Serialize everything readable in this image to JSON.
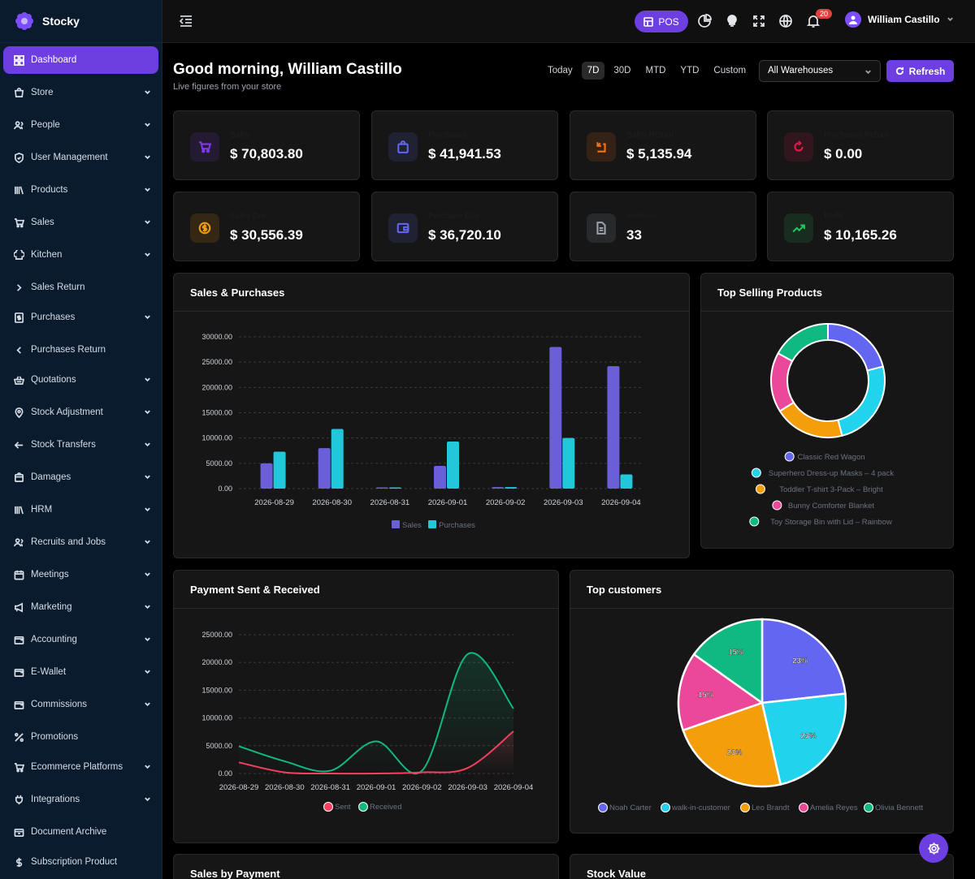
{
  "brand": {
    "name": "Stocky"
  },
  "sidebar": {
    "items": [
      {
        "label": "Dashboard",
        "icon": "dashboard-icon",
        "chevron": "none",
        "active": true
      },
      {
        "label": "Store",
        "icon": "store-icon",
        "chevron": "down"
      },
      {
        "label": "People",
        "icon": "people-icon",
        "chevron": "down"
      },
      {
        "label": "User Management",
        "icon": "shield-icon",
        "chevron": "down"
      },
      {
        "label": "Products",
        "icon": "products-icon",
        "chevron": "down"
      },
      {
        "label": "Sales",
        "icon": "cart-icon",
        "chevron": "down"
      },
      {
        "label": "Kitchen",
        "icon": "chef-hat-icon",
        "chevron": "down"
      },
      {
        "label": "Sales Return",
        "icon": "chevron-right-icon",
        "chevron": "none"
      },
      {
        "label": "Purchases",
        "icon": "receipt-icon",
        "chevron": "down"
      },
      {
        "label": "Purchases Return",
        "icon": "chevron-left-icon",
        "chevron": "none"
      },
      {
        "label": "Quotations",
        "icon": "basket-icon",
        "chevron": "down"
      },
      {
        "label": "Stock Adjustment",
        "icon": "location-icon",
        "chevron": "down"
      },
      {
        "label": "Stock Transfers",
        "icon": "arrow-left-icon",
        "chevron": "down"
      },
      {
        "label": "Damages",
        "icon": "box-icon",
        "chevron": "down"
      },
      {
        "label": "HRM",
        "icon": "library-icon",
        "chevron": "down"
      },
      {
        "label": "Recruits and Jobs",
        "icon": "users-icon",
        "chevron": "down"
      },
      {
        "label": "Meetings",
        "icon": "calendar-icon",
        "chevron": "down"
      },
      {
        "label": "Marketing",
        "icon": "megaphone-icon",
        "chevron": "down"
      },
      {
        "label": "Accounting",
        "icon": "wallet-icon",
        "chevron": "down"
      },
      {
        "label": "E-Wallet",
        "icon": "wallet-icon",
        "chevron": "down"
      },
      {
        "label": "Commissions",
        "icon": "wallet-icon",
        "chevron": "down"
      },
      {
        "label": "Promotions",
        "icon": "percent-icon",
        "chevron": "none"
      },
      {
        "label": "Ecommerce Platforms",
        "icon": "cart-icon",
        "chevron": "down"
      },
      {
        "label": "Integrations",
        "icon": "plug-icon",
        "chevron": "down"
      },
      {
        "label": "Document Archive",
        "icon": "archive-icon",
        "chevron": "none"
      },
      {
        "label": "Subscription Product",
        "icon": "dollar-icon",
        "chevron": "none"
      }
    ]
  },
  "topbar": {
    "pos_label": "POS",
    "notification_count": "20",
    "user_name": "William Castillo"
  },
  "header": {
    "greeting": "Good morning, William Castillo",
    "subtitle": "Live figures from your store",
    "ranges": [
      "Today",
      "7D",
      "30D",
      "MTD",
      "YTD",
      "Custom"
    ],
    "active_range": "7D",
    "warehouse": "All Warehouses",
    "refresh_label": "Refresh"
  },
  "stats": [
    {
      "label": "Sales",
      "value": "$ 70,803.80",
      "icon": "cart-icon",
      "color": "#7c3aed"
    },
    {
      "label": "Purchases",
      "value": "$ 41,941.53",
      "icon": "bag-icon",
      "color": "#6366f1"
    },
    {
      "label": "Sales Return",
      "value": "$ 5,135.94",
      "icon": "return-icon",
      "color": "#f97316"
    },
    {
      "label": "Purchases Return",
      "value": "$ 0.00",
      "icon": "refresh-icon",
      "color": "#e11d48"
    },
    {
      "label": "Sales Due",
      "value": "$ 30,556.39",
      "icon": "dollar-icon",
      "color": "#f59e0b"
    },
    {
      "label": "Purchase Due",
      "value": "$ 36,720.10",
      "icon": "wallet-icon",
      "color": "#6366f1"
    },
    {
      "label": "Invoices",
      "value": "33",
      "icon": "document-icon",
      "color": "#9ca3af"
    },
    {
      "label": "Profit",
      "value": "$ 10,165.26",
      "icon": "trend-up-icon",
      "color": "#22c55e"
    }
  ],
  "sales_purchases": {
    "title": "Sales & Purchases",
    "chart_data": {
      "type": "bar",
      "categories": [
        "2026-08-29",
        "2026-08-30",
        "2026-08-31",
        "2026-09-01",
        "2026-09-02",
        "2026-09-03",
        "2026-09-04"
      ],
      "series": [
        {
          "name": "Sales",
          "values": [
            5000,
            8000,
            0,
            4500,
            300,
            28000,
            24200
          ],
          "color": "#6a5fd8"
        },
        {
          "name": "Purchases",
          "values": [
            7300,
            11800,
            0,
            9300,
            300,
            10000,
            2800
          ],
          "color": "#22c7d9"
        }
      ],
      "yticks": [
        "0.00",
        "5000.00",
        "10000.00",
        "15000.00",
        "20000.00",
        "25000.00",
        "30000.00"
      ],
      "ylim": [
        0,
        30000
      ],
      "grid": true,
      "legend": "bottom"
    }
  },
  "top_selling": {
    "title": "Top Selling Products",
    "chart_data": {
      "type": "pie",
      "labels": [
        "Classic Red Wagon",
        "Superhero Dress-up Masks – 4 pack",
        "Toddler T-shirt 3-Pack – Bright",
        "Bunny Comforter Blanket",
        "Toy Storage Bin with Lid – Rainbow"
      ],
      "values": [
        21,
        25,
        20,
        17,
        17
      ],
      "colors": [
        "#6366f1",
        "#22d3ee",
        "#f59e0b",
        "#ec4899",
        "#10b981"
      ],
      "donut": true,
      "legend": "bottom"
    }
  },
  "payments": {
    "title": "Payment Sent & Received",
    "chart_data": {
      "type": "line",
      "x": [
        "2026-08-29",
        "2026-08-30",
        "2026-08-31",
        "2026-09-01",
        "2026-09-02",
        "2026-09-03",
        "2026-09-04"
      ],
      "series": [
        {
          "name": "Sent",
          "values": [
            2000,
            200,
            0,
            0,
            200,
            1000,
            7600
          ],
          "color": "#f43f5e"
        },
        {
          "name": "Received",
          "values": [
            4900,
            2200,
            500,
            5800,
            500,
            21500,
            11700
          ],
          "color": "#10b981"
        }
      ],
      "yticks": [
        "0.00",
        "5000.00",
        "10000.00",
        "15000.00",
        "20000.00",
        "25000.00"
      ],
      "ylim": [
        0,
        25000
      ],
      "grid": true,
      "legend": "bottom"
    }
  },
  "top_customers": {
    "title": "Top customers",
    "chart_data": {
      "type": "pie",
      "labels": [
        "Noah Carter",
        "walk-in-customer",
        "Leo Brandt",
        "Amelia Reyes",
        "Olivia Bennett"
      ],
      "values": [
        23,
        23,
        23,
        15,
        15
      ],
      "value_labels": [
        "23%",
        "23%",
        "23%",
        "15%",
        "15%"
      ],
      "colors": [
        "#6366f1",
        "#22d3ee",
        "#f59e0b",
        "#ec4899",
        "#10b981"
      ],
      "legend": "bottom"
    }
  },
  "bottom_cards": {
    "sales_by_payment": "Sales by Payment",
    "stock_value": "Stock Value"
  }
}
